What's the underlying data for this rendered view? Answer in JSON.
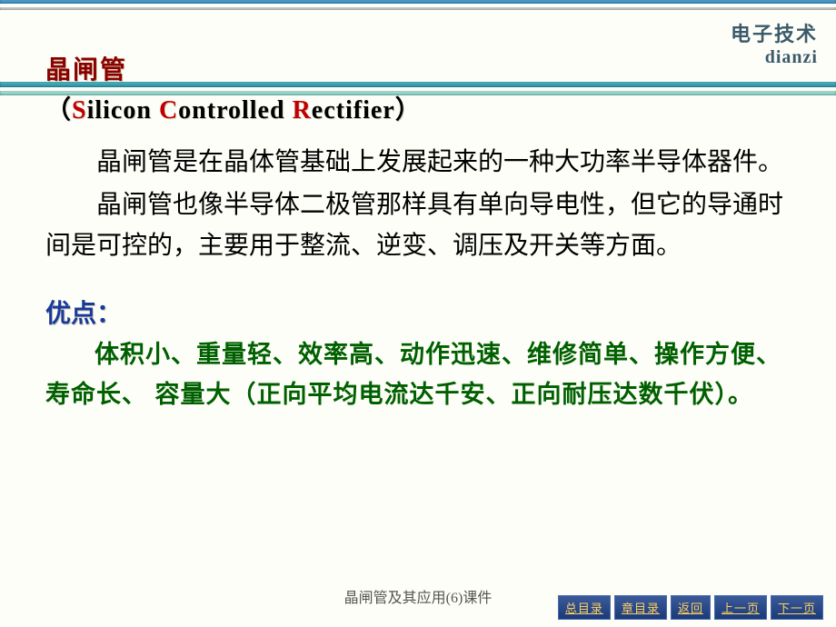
{
  "logo": {
    "cn": "电子技术",
    "en": "dianzi"
  },
  "title": "晶闸管",
  "subtitle": {
    "open": "（",
    "s": "S",
    "s_rest": "ilicon  ",
    "c": "C",
    "c_rest": "ontrolled  ",
    "r": "R",
    "r_rest": "ectifier",
    "close": "）"
  },
  "paragraphs": [
    "晶闸管是在晶体管基础上发展起来的一种大功率半导体器件。",
    "晶闸管也像半导体二极管那样具有单向导电性，但它的导通时间是可控的，主要用于整流、逆变、调压及开关等方面。"
  ],
  "advantage_title": "优点：",
  "advantages": "体积小、重量轻、效率高、动作迅速、维修简单、操作方便、寿命长、 容量大（正向平均电流达千安、正向耐压达数千伏）。",
  "footer": "晶闸管及其应用(6)课件",
  "nav": {
    "toc": "总目录",
    "chapter": "章目录",
    "back": "返回",
    "prev": "上一页",
    "next": "下一页"
  },
  "colors": {
    "title": "#8b0000",
    "subtitle_lead": "#c00000",
    "adv_title": "#1a3a9a",
    "adv_text": "#006000",
    "nav_bg": "#1a3a7a",
    "nav_text": "#ffd060",
    "bg": "#fefef8"
  }
}
